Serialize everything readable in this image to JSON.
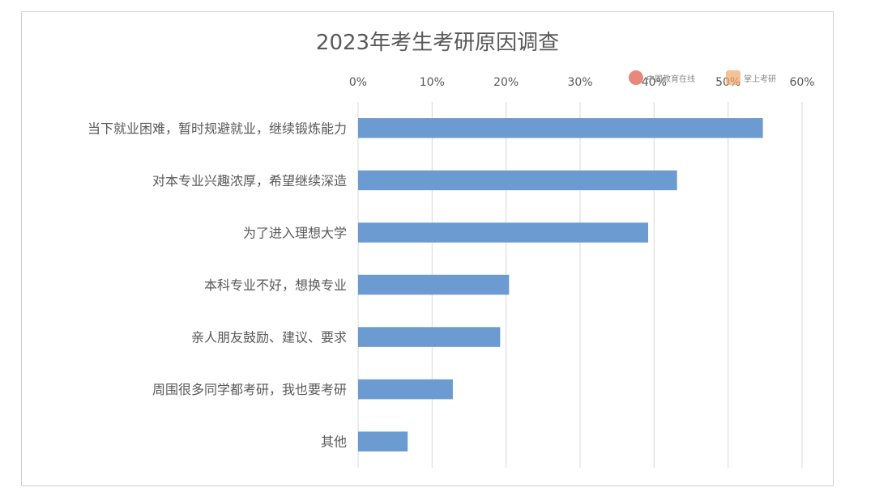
{
  "chart_data": {
    "type": "bar",
    "orientation": "horizontal",
    "title": "2023年考生考研原因调查",
    "categories": [
      "当下就业困难，暂时规避就业，继续锻炼能力",
      "对本专业兴趣浓厚，希望继续深造",
      "为了进入理想大学",
      "本科专业不好，想换专业",
      "亲人朋友鼓励、建议、要求",
      "周围很多同学都考研，我也要考研",
      "其他"
    ],
    "values": [
      54.7,
      43.1,
      39.2,
      20.4,
      19.2,
      12.8,
      6.7
    ],
    "xlim": [
      0,
      60
    ],
    "xticks": [
      "0%",
      "10%",
      "20%",
      "30%",
      "40%",
      "50%",
      "60%"
    ],
    "xaxis_position": "top",
    "grid": true,
    "bar_color": "#6b9bd1",
    "legend": "none"
  },
  "watermarks": {
    "left_logo_text": "中国教育在线",
    "right_logo_text": "掌上考研",
    "left_logo_color": "#e06a5a",
    "right_logo_color": "#f0a868"
  }
}
